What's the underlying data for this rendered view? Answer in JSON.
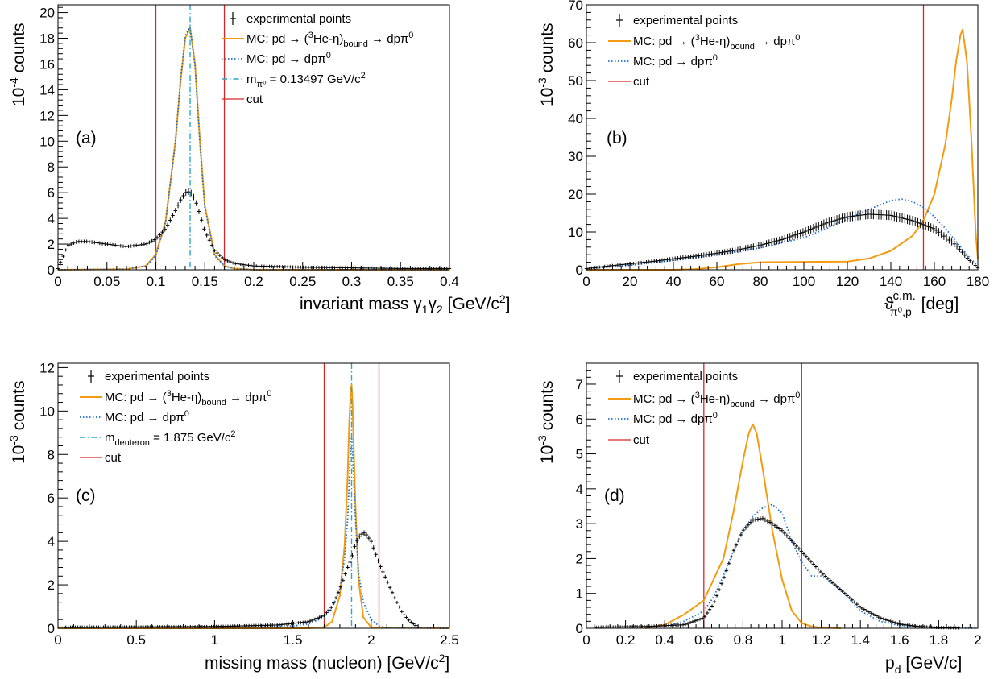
{
  "figure": {
    "panels": [
      {
        "panel_label": "(a)",
        "x_title": "invariant mass γ₁γ₂ [GeV/c²]",
        "y_title": "10⁻⁴ counts",
        "legend": [
          {
            "symbol": "cross",
            "text": "experimental points"
          },
          {
            "symbol": "line-orange",
            "text": "MC: pd → (³He-η)bound → dpπ⁰"
          },
          {
            "symbol": "line-blue",
            "text": "MC: pd → dpπ⁰"
          },
          {
            "symbol": "line-cyan",
            "text": "mπ⁰ = 0.13497 GeV/c²"
          },
          {
            "symbol": "line-red",
            "text": "cut"
          }
        ]
      },
      {
        "panel_label": "(b)",
        "x_title": "ϑ c.m. π⁰,p [deg]",
        "y_title": "10⁻³ counts",
        "legend": [
          {
            "symbol": "cross",
            "text": "experimental points"
          },
          {
            "symbol": "line-orange",
            "text": "MC: pd → (³He-η)bound → dpπ⁰"
          },
          {
            "symbol": "line-blue",
            "text": "MC: pd → dpπ⁰"
          },
          {
            "symbol": "line-red",
            "text": "cut"
          }
        ]
      },
      {
        "panel_label": "(c)",
        "x_title": "missing mass (nucleon) [GeV/c²]",
        "y_title": "10⁻³ counts",
        "legend": [
          {
            "symbol": "cross",
            "text": "experimental points"
          },
          {
            "symbol": "line-orange",
            "text": "MC: pd → (³He-η)bound → dpπ⁰"
          },
          {
            "symbol": "line-blue",
            "text": "MC: pd → dpπ⁰"
          },
          {
            "symbol": "line-cyan",
            "text": "mdeuteron = 1.875 GeV/c²"
          },
          {
            "symbol": "line-red",
            "text": "cut"
          }
        ]
      },
      {
        "panel_label": "(d)",
        "x_title": "pd [GeV/c]",
        "y_title": "10⁻³ counts",
        "legend": [
          {
            "symbol": "cross",
            "text": "experimental points"
          },
          {
            "symbol": "line-orange",
            "text": "MC: pd → (³He-η)bound → dpπ⁰"
          },
          {
            "symbol": "line-blue",
            "text": "MC: pd → dpπ⁰"
          },
          {
            "symbol": "line-red",
            "text": "cut"
          }
        ]
      }
    ]
  },
  "colors": {
    "experimental": "#000000",
    "mc_bound": "#f39c12",
    "mc_dppi": "#1f6fd1",
    "reference_line": "#2aa7c9",
    "cut": "#d62728"
  },
  "chart_data": [
    {
      "type": "line",
      "panel": "(a)",
      "xlabel": "invariant mass γ₁γ₂ [GeV/c²]",
      "ylabel": "10⁻⁴ counts",
      "xlim": [
        0,
        0.4
      ],
      "ylim": [
        0,
        20.6
      ],
      "x_ticks": [
        0,
        0.05,
        0.1,
        0.15,
        0.2,
        0.25,
        0.3,
        0.35,
        0.4
      ],
      "x_tick_labels": [
        "0",
        "0.05",
        "0.1",
        "0.15",
        "0.2",
        "0.25",
        "0.3",
        "0.35",
        "0.4"
      ],
      "y_ticks": [
        0,
        2,
        4,
        6,
        8,
        10,
        12,
        14,
        16,
        18,
        20
      ],
      "y_tick_labels": [
        "0",
        "2",
        "4",
        "6",
        "8",
        "10",
        "12",
        "14",
        "16",
        "18",
        "20"
      ],
      "cuts": [
        0.1,
        0.17
      ],
      "reference_line": 0.135,
      "series": [
        {
          "name": "experimental points",
          "style": "cross",
          "x": [
            0.0,
            0.01,
            0.02,
            0.03,
            0.04,
            0.05,
            0.06,
            0.07,
            0.08,
            0.09,
            0.1,
            0.11,
            0.12,
            0.125,
            0.13,
            0.135,
            0.14,
            0.145,
            0.15,
            0.16,
            0.17,
            0.18,
            0.2,
            0.25,
            0.3,
            0.35,
            0.4
          ],
          "y": [
            0.1,
            1.9,
            2.2,
            2.2,
            2.1,
            2.0,
            1.9,
            1.8,
            1.9,
            2.0,
            2.4,
            3.2,
            4.6,
            5.4,
            6.0,
            6.1,
            5.5,
            4.3,
            3.0,
            1.5,
            0.8,
            0.5,
            0.3,
            0.2,
            0.15,
            0.1,
            0.1
          ]
        },
        {
          "name": "MC: pd → (³He-η)bound → dpπ⁰",
          "style": "line-orange",
          "x": [
            0.0,
            0.07,
            0.09,
            0.1,
            0.11,
            0.12,
            0.125,
            0.13,
            0.135,
            0.14,
            0.145,
            0.15,
            0.16,
            0.17,
            0.18,
            0.2,
            0.4
          ],
          "y": [
            0,
            0.05,
            0.3,
            1.2,
            3.8,
            10.0,
            14.5,
            18.0,
            18.8,
            16.0,
            10.0,
            5.0,
            1.2,
            0.3,
            0.1,
            0,
            0
          ]
        },
        {
          "name": "MC: pd → dpπ⁰",
          "style": "line-blue",
          "x": [
            0.0,
            0.07,
            0.09,
            0.1,
            0.11,
            0.12,
            0.125,
            0.13,
            0.135,
            0.14,
            0.145,
            0.15,
            0.16,
            0.17,
            0.18,
            0.2,
            0.4
          ],
          "y": [
            0,
            0.05,
            0.3,
            1.1,
            3.7,
            9.9,
            14.6,
            18.2,
            18.9,
            15.9,
            9.8,
            4.9,
            1.1,
            0.3,
            0.1,
            0,
            0
          ]
        }
      ]
    },
    {
      "type": "line",
      "panel": "(b)",
      "xlabel": "ϑ c.m. π⁰,p [deg]",
      "ylabel": "10⁻³ counts",
      "xlim": [
        0,
        180
      ],
      "ylim": [
        0,
        70
      ],
      "x_ticks": [
        0,
        20,
        40,
        60,
        80,
        100,
        120,
        140,
        160,
        180
      ],
      "x_tick_labels": [
        "0",
        "20",
        "40",
        "60",
        "80",
        "100",
        "120",
        "140",
        "160",
        "180"
      ],
      "y_ticks": [
        0,
        10,
        20,
        30,
        40,
        50,
        60,
        70
      ],
      "y_tick_labels": [
        "0",
        "10",
        "20",
        "30",
        "40",
        "50",
        "60",
        "70"
      ],
      "cuts": [
        155
      ],
      "series": [
        {
          "name": "experimental points",
          "style": "cross",
          "x": [
            0,
            10,
            20,
            30,
            40,
            50,
            60,
            70,
            80,
            90,
            100,
            110,
            120,
            130,
            140,
            150,
            160,
            170,
            175,
            180
          ],
          "y": [
            0.3,
            1.0,
            1.6,
            2.2,
            2.9,
            3.6,
            4.4,
            5.3,
            6.5,
            8.0,
            10.0,
            12.3,
            14.0,
            14.7,
            14.4,
            13.0,
            10.8,
            6.5,
            3.2,
            0.5
          ]
        },
        {
          "name": "MC: pd → (³He-η)bound → dpπ⁰",
          "style": "line-orange",
          "x": [
            0,
            40,
            50,
            60,
            70,
            80,
            100,
            120,
            130,
            140,
            150,
            155,
            160,
            165,
            168,
            170,
            172,
            173,
            175,
            177,
            179,
            180
          ],
          "y": [
            0,
            0,
            0.2,
            0.7,
            1.5,
            2.0,
            2.1,
            2.2,
            3.0,
            5.0,
            9.0,
            13.0,
            20.0,
            33.0,
            45.0,
            55.0,
            62.0,
            63.5,
            55.0,
            35.0,
            10.0,
            3.0
          ]
        },
        {
          "name": "MC: pd → dpπ⁰",
          "style": "line-blue",
          "x": [
            0,
            20,
            40,
            60,
            80,
            100,
            110,
            120,
            130,
            140,
            145,
            150,
            155,
            160,
            165,
            170,
            175,
            180
          ],
          "y": [
            0.3,
            1.2,
            2.5,
            4.0,
            5.8,
            8.5,
            10.8,
            13.5,
            16.0,
            18.3,
            18.7,
            18.0,
            16.5,
            14.0,
            11.0,
            7.5,
            4.0,
            1.0
          ]
        }
      ]
    },
    {
      "type": "line",
      "panel": "(c)",
      "xlabel": "missing mass (nucleon) [GeV/c²]",
      "ylabel": "10⁻³ counts",
      "xlim": [
        0,
        2.5
      ],
      "ylim": [
        0,
        12.2
      ],
      "x_ticks": [
        0,
        0.5,
        1,
        1.5,
        2,
        2.5
      ],
      "x_tick_labels": [
        "0",
        "0.5",
        "1",
        "1.5",
        "2",
        "2.5"
      ],
      "y_ticks": [
        0,
        2,
        4,
        6,
        8,
        10,
        12
      ],
      "y_tick_labels": [
        "0",
        "2",
        "4",
        "6",
        "8",
        "10",
        "12"
      ],
      "cuts": [
        1.7,
        2.05
      ],
      "reference_line": 1.875,
      "series": [
        {
          "name": "experimental points",
          "style": "cross",
          "x": [
            0.05,
            0.5,
            1.0,
            1.4,
            1.6,
            1.7,
            1.75,
            1.8,
            1.85,
            1.875,
            1.9,
            1.93,
            1.96,
            2.0,
            2.05,
            2.1,
            2.15,
            2.2,
            2.25,
            2.3
          ],
          "y": [
            0.05,
            0.06,
            0.08,
            0.15,
            0.3,
            0.6,
            1.0,
            1.8,
            2.8,
            3.2,
            3.9,
            4.3,
            4.4,
            4.0,
            3.0,
            2.2,
            1.4,
            0.7,
            0.3,
            0.05
          ]
        },
        {
          "name": "MC: pd → (³He-η)bound → dpπ⁰",
          "style": "line-orange",
          "x": [
            0,
            1.6,
            1.7,
            1.75,
            1.8,
            1.83,
            1.85,
            1.86,
            1.87,
            1.875,
            1.88,
            1.89,
            1.9,
            1.92,
            1.95,
            2.0,
            2.5
          ],
          "y": [
            0,
            0,
            0.05,
            0.3,
            1.5,
            3.8,
            7.0,
            9.5,
            11.0,
            11.2,
            10.5,
            8.0,
            5.5,
            2.2,
            0.5,
            0.05,
            0
          ]
        },
        {
          "name": "MC: pd → dpπ⁰",
          "style": "line-blue",
          "x": [
            0,
            1.5,
            1.6,
            1.7,
            1.75,
            1.8,
            1.83,
            1.85,
            1.86,
            1.87,
            1.875,
            1.88,
            1.9,
            1.92,
            1.95,
            2.0,
            2.05,
            2.1,
            2.5
          ],
          "y": [
            0.05,
            0.1,
            0.2,
            0.5,
            0.9,
            1.8,
            3.2,
            5.0,
            6.8,
            8.5,
            8.8,
            8.2,
            5.0,
            2.5,
            1.2,
            0.4,
            0.1,
            0.02,
            0
          ]
        }
      ]
    },
    {
      "type": "line",
      "panel": "(d)",
      "xlabel": "pd [GeV/c]",
      "ylabel": "10⁻³ counts",
      "xlim": [
        0,
        2
      ],
      "ylim": [
        0,
        7.6
      ],
      "x_ticks": [
        0,
        0.2,
        0.4,
        0.6,
        0.8,
        1,
        1.2,
        1.4,
        1.6,
        1.8,
        2
      ],
      "x_tick_labels": [
        "0",
        "0.2",
        "0.4",
        "0.6",
        "0.8",
        "1",
        "1.2",
        "1.4",
        "1.6",
        "1.8",
        "2"
      ],
      "y_ticks": [
        0,
        1,
        2,
        3,
        4,
        5,
        6,
        7
      ],
      "y_tick_labels": [
        "0",
        "1",
        "2",
        "3",
        "4",
        "5",
        "6",
        "7"
      ],
      "cuts": [
        0.6,
        1.1
      ],
      "series": [
        {
          "name": "experimental points",
          "style": "cross",
          "x": [
            0.05,
            0.3,
            0.5,
            0.6,
            0.65,
            0.7,
            0.75,
            0.8,
            0.85,
            0.9,
            0.95,
            1.0,
            1.05,
            1.1,
            1.15,
            1.2,
            1.3,
            1.4,
            1.5,
            1.6,
            1.7,
            1.8,
            1.9
          ],
          "y": [
            0.03,
            0.05,
            0.1,
            0.3,
            0.7,
            1.4,
            2.2,
            2.8,
            3.1,
            3.15,
            3.0,
            2.8,
            2.5,
            2.2,
            1.9,
            1.6,
            1.1,
            0.6,
            0.3,
            0.12,
            0.05,
            0.02,
            0.01
          ]
        },
        {
          "name": "MC: pd → (³He-η)bound → dpπ⁰",
          "style": "line-orange",
          "x": [
            0.3,
            0.4,
            0.5,
            0.6,
            0.7,
            0.75,
            0.8,
            0.83,
            0.85,
            0.87,
            0.9,
            0.95,
            1.0,
            1.05,
            1.1,
            1.15,
            1.2,
            1.3
          ],
          "y": [
            0.0,
            0.1,
            0.4,
            0.8,
            2.0,
            3.3,
            4.8,
            5.6,
            5.85,
            5.6,
            4.6,
            2.8,
            1.4,
            0.5,
            0.15,
            0.05,
            0.02,
            0
          ]
        },
        {
          "name": "MC: pd → dpπ⁰",
          "style": "line-blue",
          "x": [
            0.4,
            0.5,
            0.6,
            0.65,
            0.7,
            0.75,
            0.8,
            0.85,
            0.9,
            0.95,
            1.0,
            1.05,
            1.1,
            1.15,
            1.2,
            1.3,
            1.4,
            1.5,
            1.6,
            1.8,
            2.0
          ],
          "y": [
            0.05,
            0.2,
            0.5,
            0.9,
            1.5,
            2.2,
            2.8,
            3.2,
            3.45,
            3.55,
            3.3,
            2.5,
            1.9,
            1.5,
            1.5,
            1.1,
            0.5,
            0.2,
            0.08,
            0.02,
            0
          ]
        }
      ]
    }
  ]
}
